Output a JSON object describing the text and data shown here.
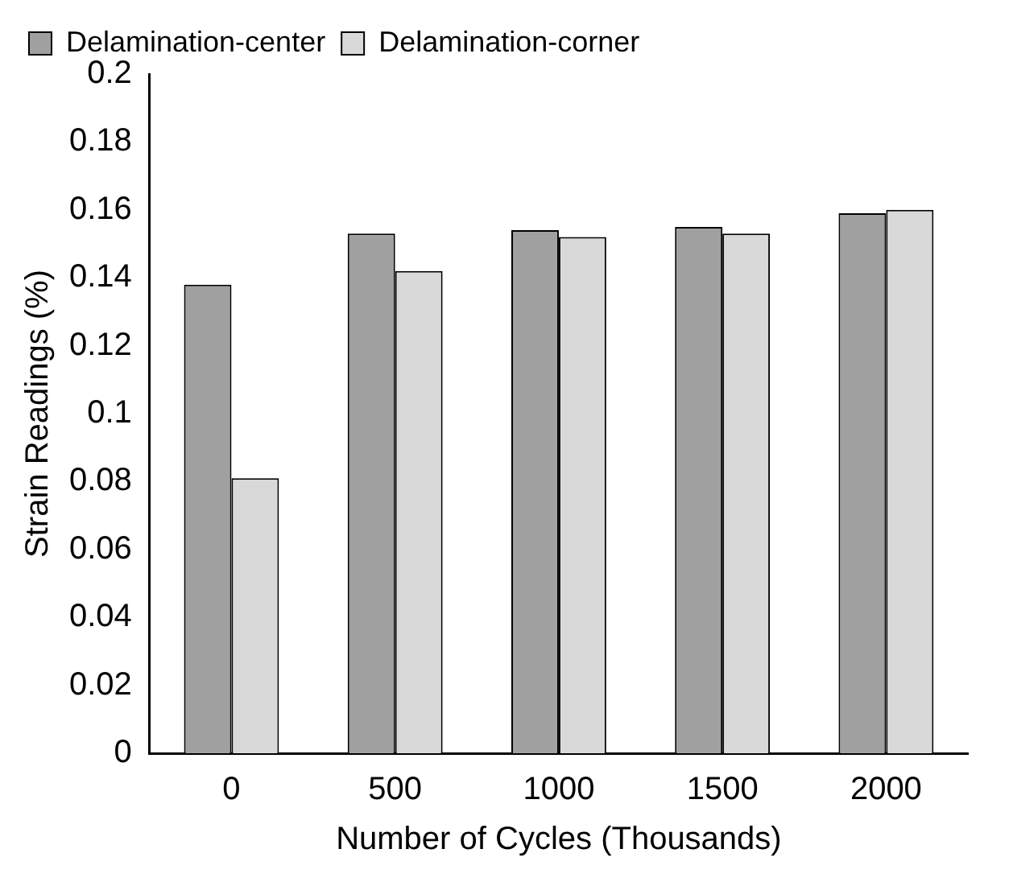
{
  "chart_data": {
    "type": "bar",
    "xlabel": "Number of Cycles (Thousands)",
    "ylabel": "Strain Readings (%)",
    "categories": [
      "0",
      "500",
      "1000",
      "1500",
      "2000"
    ],
    "series": [
      {
        "name": "Delamination-center",
        "color": "#a0a0a0",
        "values": [
          0.138,
          0.153,
          0.154,
          0.155,
          0.159
        ]
      },
      {
        "name": "Delamination-corner",
        "color": "#d9d9d9",
        "values": [
          0.081,
          0.142,
          0.152,
          0.153,
          0.16
        ]
      }
    ],
    "ylim": [
      0,
      0.2
    ],
    "yticks": [
      0,
      0.02,
      0.04,
      0.06,
      0.08,
      0.1,
      0.12,
      0.14,
      0.16,
      0.18,
      0.2
    ],
    "grid": false,
    "legend": "top left"
  }
}
